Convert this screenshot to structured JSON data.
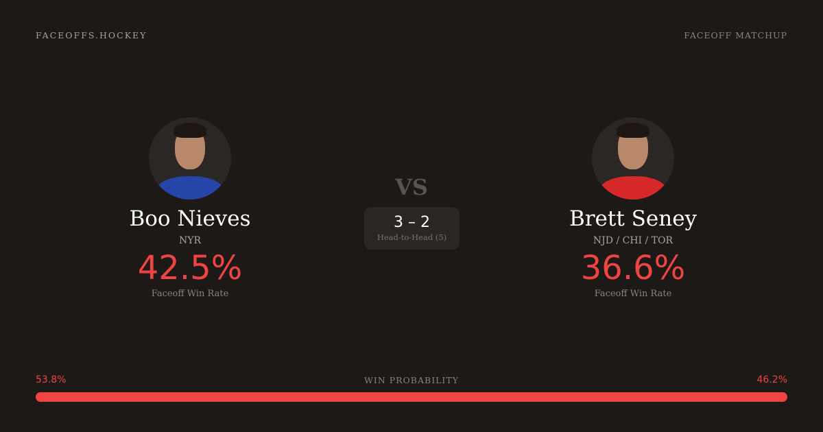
{
  "header": {
    "brand": "FACEOFFS.HOCKEY",
    "tag": "FACEOFF MATCHUP"
  },
  "players": [
    {
      "name": "Boo Nieves",
      "team": "NYR",
      "rate": "42.5%",
      "rate_label": "Faceoff Win Rate",
      "jersey_color": "#2546a8"
    },
    {
      "name": "Brett Seney",
      "team": "NJD / CHI / TOR",
      "rate": "36.6%",
      "rate_label": "Faceoff Win Rate",
      "jersey_color": "#d62828"
    }
  ],
  "vs": "VS",
  "head_to_head": {
    "score": "3 – 2",
    "label": "Head-to-Head (5)"
  },
  "win_probability": {
    "label": "WIN PROBABILITY",
    "left": "53.8%",
    "right": "46.2%",
    "left_value": 53.8,
    "right_value": 46.2,
    "color": "#ef4444"
  }
}
